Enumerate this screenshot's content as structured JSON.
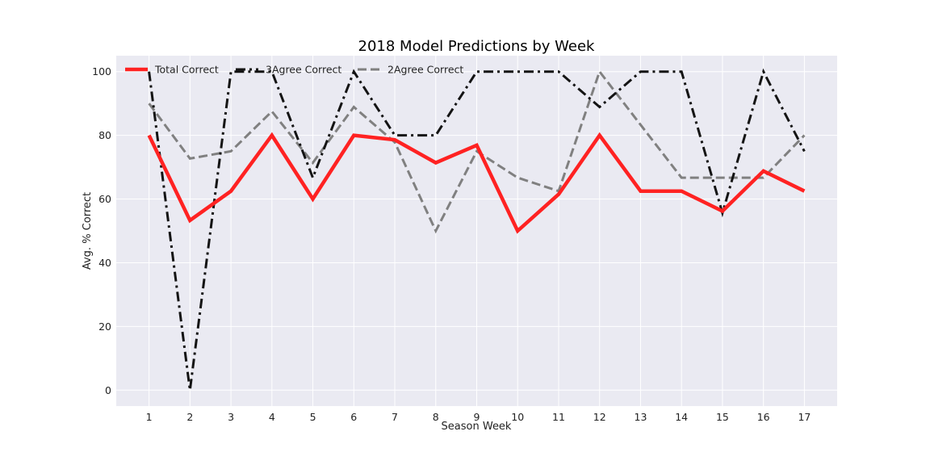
{
  "chart_data": {
    "type": "line",
    "title": "2018 Model Predictions by Week",
    "xlabel": "Season Week",
    "ylabel": "Avg. % Correct",
    "x": [
      1,
      2,
      3,
      4,
      5,
      6,
      7,
      8,
      9,
      10,
      11,
      12,
      13,
      14,
      15,
      16,
      17
    ],
    "xlim": [
      0.2,
      17.8
    ],
    "ylim": [
      -5,
      105
    ],
    "yticks": [
      0,
      20,
      40,
      60,
      80,
      100
    ],
    "grid": true,
    "legend_position": "top-left",
    "background": "#eaeaf2",
    "series": [
      {
        "name": "Total Correct",
        "color": "#ff2222",
        "line_style": "solid",
        "values": [
          80,
          53.3,
          62.5,
          80,
          60,
          80,
          78.6,
          71.4,
          76.9,
          50,
          61.5,
          80,
          62.5,
          62.5,
          56.2,
          68.8,
          62.5
        ]
      },
      {
        "name": "3Agree Correct",
        "color": "#141414",
        "line_style": "dashdot",
        "values": [
          100,
          0,
          100,
          100,
          66.7,
          100,
          80,
          80,
          100,
          100,
          100,
          88.9,
          100,
          100,
          55.6,
          100,
          75
        ]
      },
      {
        "name": "2Agree Correct",
        "color": "#808080",
        "line_style": "dashed",
        "values": [
          90,
          72.7,
          75,
          87.5,
          71.4,
          88.9,
          77.8,
          50,
          75,
          66.7,
          62.5,
          100,
          83.3,
          66.7,
          66.7,
          66.7,
          80
        ]
      }
    ]
  }
}
